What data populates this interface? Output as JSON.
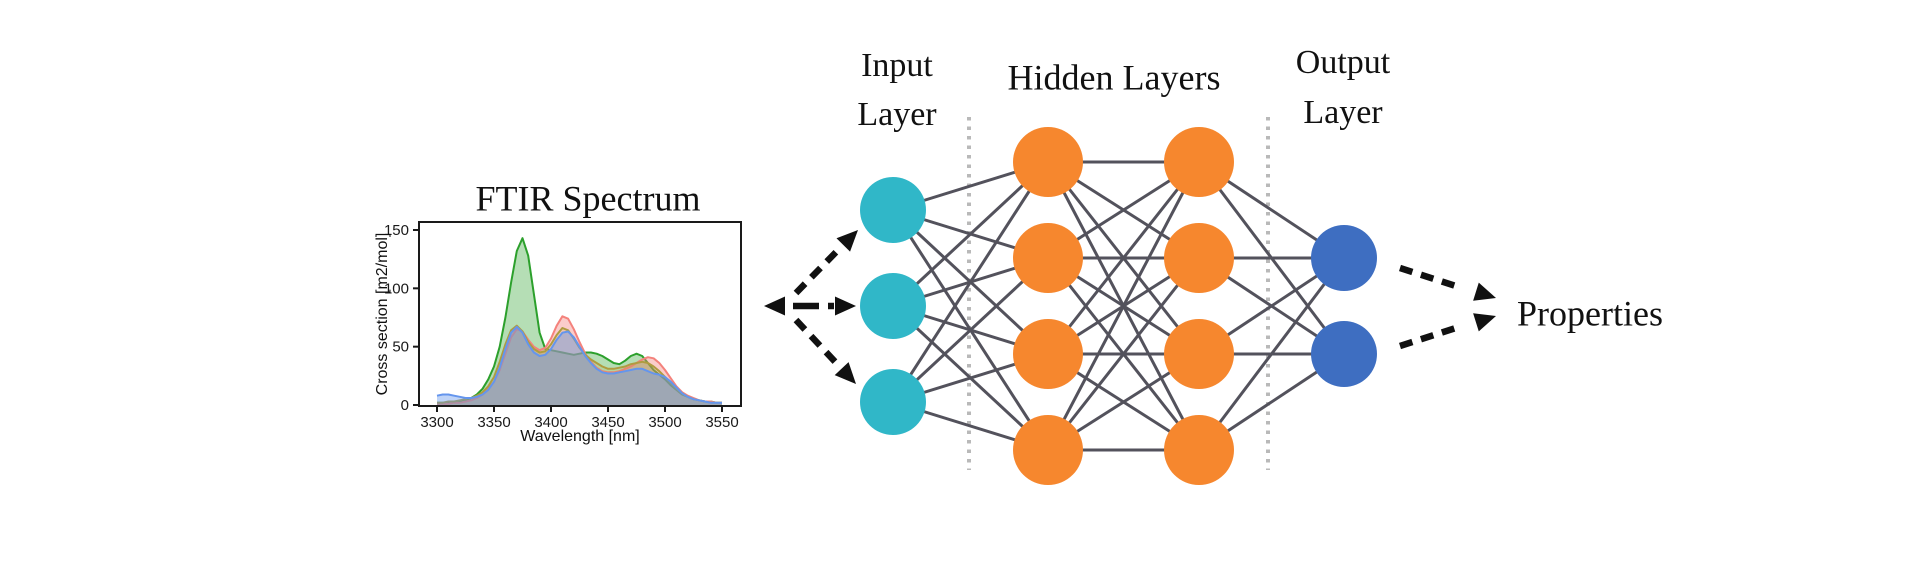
{
  "chart_data": {
    "type": "area",
    "title": "FTIR Spectrum",
    "xlabel": "Wavelength [nm]",
    "ylabel": "Cross section [m2/mol]",
    "x_ticks": [
      3300,
      3350,
      3400,
      3450,
      3500,
      3550
    ],
    "y_ticks": [
      0,
      50,
      100,
      150
    ],
    "xlim": [
      3284,
      3566
    ],
    "ylim": [
      0,
      158
    ],
    "grid": false,
    "legend": false,
    "x": [
      3300,
      3305,
      3310,
      3315,
      3320,
      3325,
      3330,
      3335,
      3340,
      3345,
      3350,
      3355,
      3360,
      3365,
      3370,
      3375,
      3380,
      3385,
      3390,
      3395,
      3400,
      3405,
      3410,
      3415,
      3420,
      3425,
      3430,
      3435,
      3440,
      3445,
      3450,
      3455,
      3460,
      3465,
      3470,
      3475,
      3480,
      3485,
      3490,
      3495,
      3500,
      3505,
      3510,
      3515,
      3520,
      3525,
      3530,
      3535,
      3540,
      3545,
      3550
    ],
    "series": [
      {
        "name": "green-spectrum",
        "color": "#2CA02C",
        "fill_opacity": 0.35,
        "values": [
          2,
          2,
          2,
          3,
          3,
          4,
          6,
          9,
          14,
          22,
          33,
          50,
          75,
          105,
          132,
          143,
          128,
          95,
          62,
          48,
          47,
          46,
          45,
          44,
          43,
          44,
          45,
          45,
          44,
          42,
          39,
          36,
          35,
          38,
          42,
          44,
          42,
          36,
          30,
          26,
          22,
          17,
          13,
          9,
          7,
          5,
          4,
          3,
          3,
          2,
          2
        ]
      },
      {
        "name": "salmon-spectrum",
        "color": "#F4827C",
        "fill_opacity": 0.4,
        "values": [
          1,
          1,
          1,
          2,
          2,
          3,
          4,
          6,
          9,
          14,
          20,
          30,
          44,
          58,
          65,
          63,
          56,
          50,
          47,
          49,
          57,
          68,
          76,
          74,
          65,
          54,
          44,
          37,
          32,
          29,
          28,
          28,
          29,
          31,
          33,
          36,
          39,
          41,
          40,
          36,
          30,
          23,
          16,
          11,
          8,
          6,
          4,
          3,
          3,
          2,
          2
        ]
      },
      {
        "name": "olive-spectrum",
        "color": "#AF9C3F",
        "fill_opacity": 0.18,
        "values": [
          2,
          2,
          3,
          3,
          4,
          5,
          6,
          8,
          11,
          16,
          24,
          37,
          52,
          64,
          68,
          63,
          54,
          48,
          45,
          46,
          52,
          60,
          66,
          64,
          57,
          49,
          43,
          39,
          36,
          33,
          31,
          31,
          32,
          33,
          35,
          36,
          37,
          36,
          33,
          29,
          24,
          19,
          14,
          10,
          7,
          5,
          4,
          3,
          2,
          2,
          2
        ]
      },
      {
        "name": "blue-spectrum",
        "color": "#6495ED",
        "fill_opacity": 0.42,
        "values": [
          8,
          9,
          9,
          8,
          7,
          6,
          6,
          7,
          9,
          13,
          20,
          32,
          48,
          62,
          67,
          62,
          52,
          45,
          42,
          43,
          48,
          56,
          62,
          63,
          58,
          50,
          42,
          36,
          31,
          28,
          27,
          27,
          28,
          29,
          30,
          31,
          31,
          29,
          27,
          26,
          24,
          20,
          15,
          10,
          7,
          5,
          4,
          3,
          2,
          2,
          2
        ]
      }
    ]
  },
  "network": {
    "input_label": "Input\nLayer",
    "hidden_label": "Hidden Layers",
    "output_label": "Output\nLayer",
    "properties_label": "Properties",
    "layers": [
      {
        "name": "input",
        "count": 3,
        "color": "#30B7C8"
      },
      {
        "name": "hidden-1",
        "count": 4,
        "color": "#F6872E"
      },
      {
        "name": "hidden-2",
        "count": 4,
        "color": "#F6872E"
      },
      {
        "name": "output",
        "count": 2,
        "color": "#3E6EC1"
      }
    ],
    "edge_color": "#53525C",
    "separator_color": "#B9B9B9",
    "arrow_color": "#111111"
  }
}
